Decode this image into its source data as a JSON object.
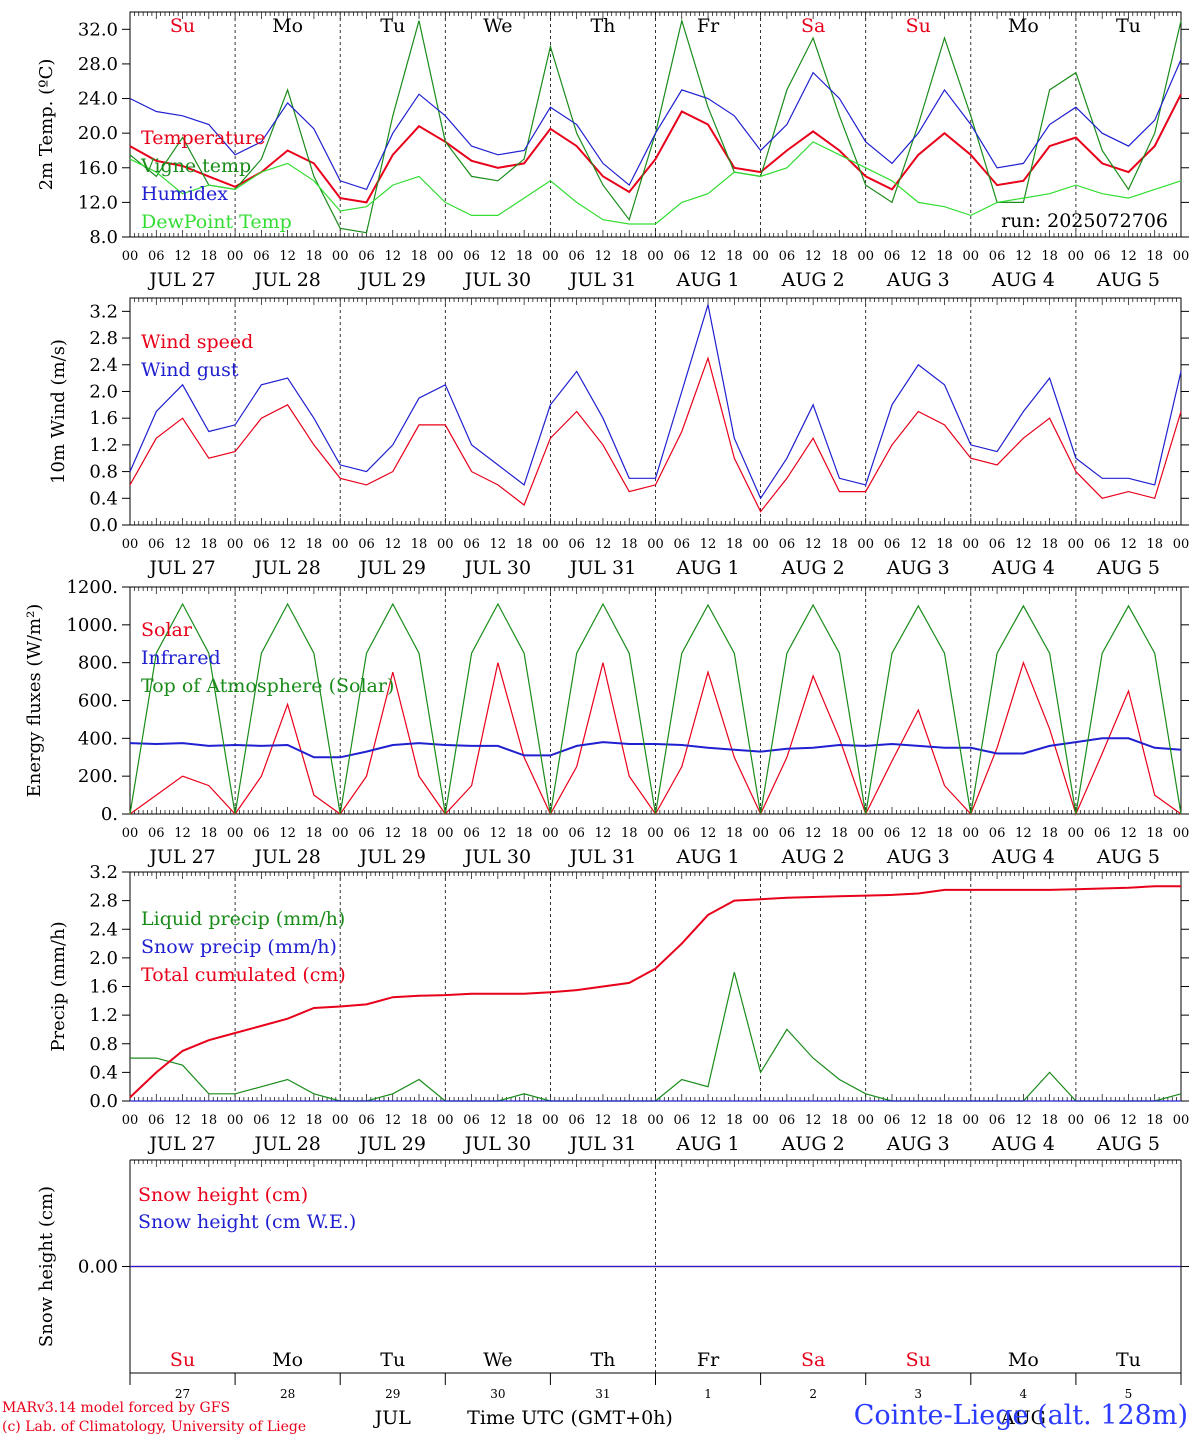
{
  "run_label": "run: 2025072706",
  "time_axis_label": "Time UTC (GMT+0h)",
  "month_label": "JUL",
  "month_label_2": "AUG",
  "footer": {
    "model_line": "MARv3.14 model forced by GFS",
    "credit_line": "(c) Lab. of Climatology, University of Liege",
    "station": "Cointe-Liege (alt. 128m)"
  },
  "days": [
    "JUL 27",
    "JUL 28",
    "JUL 29",
    "JUL 30",
    "JUL 31",
    "AUG  1",
    "AUG  2",
    "AUG  3",
    "AUG  4",
    "AUG  5"
  ],
  "weekdays": [
    "Su",
    "Mo",
    "Tu",
    "We",
    "Th",
    "Fr",
    "Sa",
    "Su",
    "Mo",
    "Tu"
  ],
  "bottom_day_numbers": [
    "27",
    "28",
    "29",
    "30",
    "31",
    "1",
    "2",
    "3",
    "4",
    "5"
  ],
  "hour_ticks": [
    "00",
    "06",
    "12",
    "18"
  ],
  "colors": {
    "red": "#e8001a",
    "green": "#1a8c1a",
    "blue": "#2020d0",
    "lightgreen": "#33dd33",
    "weekend": "#e8001a",
    "weekday": "#000000"
  },
  "chart_data": [
    {
      "type": "line",
      "ylabel": "2m Temp. (ºC)",
      "ylim": [
        8,
        34
      ],
      "yticks": [
        "8.0",
        "12.0",
        "16.0",
        "20.0",
        "24.0",
        "28.0",
        "32.0"
      ],
      "x": [
        0,
        6,
        12,
        18,
        24,
        30,
        36,
        42,
        48,
        54,
        60,
        66,
        72,
        78,
        84,
        90,
        96,
        102,
        108,
        114,
        120,
        126,
        132,
        138,
        144,
        150,
        156,
        162,
        168,
        174,
        180,
        186,
        192,
        198,
        204,
        210,
        216,
        222,
        228,
        234,
        240
      ],
      "series": [
        {
          "name": "Temperature",
          "color": "red",
          "values": [
            18.5,
            16.8,
            16.2,
            15.0,
            13.8,
            15.5,
            18.0,
            16.5,
            12.5,
            12.0,
            17.5,
            20.8,
            19.0,
            16.8,
            16.0,
            16.5,
            20.5,
            18.5,
            15.0,
            13.2,
            17.0,
            22.5,
            21.0,
            16.0,
            15.5,
            18.0,
            20.2,
            18.0,
            15.0,
            13.5,
            17.5,
            20.0,
            17.5,
            14.0,
            14.5,
            18.5,
            19.5,
            16.5,
            15.5,
            18.5,
            24.5
          ]
        },
        {
          "name": "Vigne temp",
          "color": "green",
          "values": [
            17.5,
            15.0,
            19.5,
            14.0,
            13.5,
            17.0,
            25.0,
            15.0,
            9.0,
            8.5,
            22.0,
            33.0,
            19.0,
            15.0,
            14.5,
            17.0,
            30.0,
            20.0,
            14.0,
            10.0,
            20.0,
            33.0,
            23.0,
            15.5,
            15.0,
            25.0,
            31.0,
            22.0,
            14.0,
            12.0,
            21.0,
            31.0,
            22.0,
            12.0,
            12.0,
            25.0,
            27.0,
            18.0,
            13.5,
            20.0,
            33.0
          ]
        },
        {
          "name": "Humidex",
          "color": "blue",
          "values": [
            24.0,
            22.5,
            22.0,
            21.0,
            17.5,
            19.0,
            23.5,
            20.5,
            14.5,
            13.5,
            20.0,
            24.5,
            22.0,
            18.5,
            17.5,
            18.0,
            23.0,
            21.0,
            16.5,
            14.0,
            20.0,
            25.0,
            24.0,
            22.0,
            18.0,
            21.0,
            27.0,
            24.0,
            19.0,
            16.5,
            20.0,
            25.0,
            21.0,
            16.0,
            16.5,
            21.0,
            23.0,
            20.0,
            18.5,
            21.5,
            28.5
          ]
        },
        {
          "name": "DewPoint Temp",
          "color": "lightgreen",
          "values": [
            17.0,
            15.5,
            13.0,
            14.0,
            13.5,
            15.5,
            16.5,
            14.5,
            11.0,
            11.5,
            14.0,
            15.0,
            12.0,
            10.5,
            10.5,
            12.5,
            14.5,
            12.0,
            10.0,
            9.5,
            9.5,
            12.0,
            13.0,
            15.5,
            15.0,
            16.0,
            19.0,
            17.5,
            16.0,
            14.5,
            12.0,
            11.5,
            10.5,
            12.0,
            12.5,
            13.0,
            14.0,
            13.0,
            12.5,
            13.5,
            14.5
          ]
        }
      ]
    },
    {
      "type": "line",
      "ylabel": "10m Wind (m/s)",
      "ylim": [
        0,
        3.4
      ],
      "yticks": [
        "0.0",
        "0.4",
        "0.8",
        "1.2",
        "1.6",
        "2.0",
        "2.4",
        "2.8",
        "3.2"
      ],
      "x": [
        0,
        6,
        12,
        18,
        24,
        30,
        36,
        42,
        48,
        54,
        60,
        66,
        72,
        78,
        84,
        90,
        96,
        102,
        108,
        114,
        120,
        126,
        132,
        138,
        144,
        150,
        156,
        162,
        168,
        174,
        180,
        186,
        192,
        198,
        204,
        210,
        216,
        222,
        228,
        234,
        240
      ],
      "series": [
        {
          "name": "Wind speed",
          "color": "red",
          "values": [
            0.6,
            1.3,
            1.6,
            1.0,
            1.1,
            1.6,
            1.8,
            1.2,
            0.7,
            0.6,
            0.8,
            1.5,
            1.5,
            0.8,
            0.6,
            0.3,
            1.3,
            1.7,
            1.2,
            0.5,
            0.6,
            1.4,
            2.5,
            1.0,
            0.2,
            0.7,
            1.3,
            0.5,
            0.5,
            1.2,
            1.7,
            1.5,
            1.0,
            0.9,
            1.3,
            1.6,
            0.8,
            0.4,
            0.5,
            0.4,
            1.7
          ]
        },
        {
          "name": "Wind gust",
          "color": "blue",
          "values": [
            0.8,
            1.7,
            2.1,
            1.4,
            1.5,
            2.1,
            2.2,
            1.6,
            0.9,
            0.8,
            1.2,
            1.9,
            2.1,
            1.2,
            0.9,
            0.6,
            1.8,
            2.3,
            1.6,
            0.7,
            0.7,
            2.0,
            3.3,
            1.3,
            0.4,
            1.0,
            1.8,
            0.7,
            0.6,
            1.8,
            2.4,
            2.1,
            1.2,
            1.1,
            1.7,
            2.2,
            1.0,
            0.7,
            0.7,
            0.6,
            2.3
          ]
        }
      ]
    },
    {
      "type": "line",
      "ylabel": "Energy fluxes (W/m²)",
      "ylim": [
        0,
        1200
      ],
      "yticks": [
        "0.",
        "200.",
        "400.",
        "600.",
        "800.",
        "1000.",
        "1200."
      ],
      "x": [
        0,
        6,
        12,
        18,
        24,
        30,
        36,
        42,
        48,
        54,
        60,
        66,
        72,
        78,
        84,
        90,
        96,
        102,
        108,
        114,
        120,
        126,
        132,
        138,
        144,
        150,
        156,
        162,
        168,
        174,
        180,
        186,
        192,
        198,
        204,
        210,
        216,
        222,
        228,
        234,
        240
      ],
      "series": [
        {
          "name": "Solar",
          "color": "red",
          "values": [
            0,
            100,
            200,
            150,
            0,
            200,
            580,
            100,
            0,
            200,
            750,
            200,
            0,
            150,
            800,
            300,
            0,
            250,
            800,
            200,
            0,
            250,
            750,
            300,
            0,
            300,
            730,
            400,
            0,
            280,
            550,
            150,
            0,
            350,
            800,
            450,
            0,
            320,
            650,
            100,
            0
          ]
        },
        {
          "name": "Infrared",
          "color": "blue",
          "values": [
            375,
            370,
            375,
            360,
            365,
            360,
            365,
            300,
            300,
            330,
            365,
            375,
            365,
            360,
            360,
            310,
            310,
            360,
            380,
            370,
            370,
            365,
            350,
            340,
            330,
            345,
            350,
            365,
            360,
            370,
            360,
            350,
            350,
            320,
            320,
            360,
            380,
            400,
            400,
            350,
            340
          ]
        },
        {
          "name": "Top of Atmosphere (Solar)",
          "color": "green",
          "values": [
            0,
            850,
            1110,
            850,
            0,
            850,
            1110,
            850,
            0,
            850,
            1110,
            850,
            0,
            850,
            1110,
            850,
            0,
            850,
            1110,
            850,
            0,
            850,
            1105,
            850,
            0,
            850,
            1105,
            850,
            0,
            850,
            1100,
            850,
            0,
            850,
            1100,
            850,
            0,
            850,
            1100,
            850,
            0
          ]
        }
      ]
    },
    {
      "type": "line",
      "ylabel": "Precip (mm/h)",
      "ylim": [
        0,
        3.2
      ],
      "yticks": [
        "0.0",
        "0.4",
        "0.8",
        "1.2",
        "1.6",
        "2.0",
        "2.4",
        "2.8",
        "3.2"
      ],
      "x": [
        0,
        6,
        12,
        18,
        24,
        30,
        36,
        42,
        48,
        54,
        60,
        66,
        72,
        78,
        84,
        90,
        96,
        102,
        108,
        114,
        120,
        126,
        132,
        138,
        144,
        150,
        156,
        162,
        168,
        174,
        180,
        186,
        192,
        198,
        204,
        210,
        216,
        222,
        228,
        234,
        240
      ],
      "series": [
        {
          "name": "Liquid precip (mm/h)",
          "color": "green",
          "values": [
            0.6,
            0.6,
            0.5,
            0.1,
            0.1,
            0.2,
            0.3,
            0.1,
            0.0,
            0.0,
            0.1,
            0.3,
            0.0,
            0.0,
            0.0,
            0.1,
            0.0,
            0.0,
            0.0,
            0.0,
            0.0,
            0.3,
            0.2,
            1.8,
            0.4,
            1.0,
            0.6,
            0.3,
            0.1,
            0.0,
            0.0,
            0.0,
            0.0,
            0.0,
            0.0,
            0.4,
            0.0,
            0.0,
            0.0,
            0.0,
            0.1
          ]
        },
        {
          "name": "Snow precip (mm/h)",
          "color": "blue",
          "values": [
            0,
            0,
            0,
            0,
            0,
            0,
            0,
            0,
            0,
            0,
            0,
            0,
            0,
            0,
            0,
            0,
            0,
            0,
            0,
            0,
            0,
            0,
            0,
            0,
            0,
            0,
            0,
            0,
            0,
            0,
            0,
            0,
            0,
            0,
            0,
            0,
            0,
            0,
            0,
            0,
            0
          ]
        },
        {
          "name": "Total cumulated (cm)",
          "color": "red",
          "values": [
            0.05,
            0.4,
            0.7,
            0.85,
            0.95,
            1.05,
            1.15,
            1.3,
            1.32,
            1.35,
            1.45,
            1.47,
            1.48,
            1.5,
            1.5,
            1.5,
            1.52,
            1.55,
            1.6,
            1.65,
            1.85,
            2.2,
            2.6,
            2.8,
            2.82,
            2.84,
            2.85,
            2.86,
            2.87,
            2.88,
            2.9,
            2.95,
            2.95,
            2.95,
            2.95,
            2.95,
            2.96,
            2.97,
            2.98,
            3.0,
            3.0
          ]
        }
      ]
    },
    {
      "type": "line",
      "ylabel": "Snow height (cm)",
      "ylim": [
        -1,
        1
      ],
      "yticks": [
        "0.00"
      ],
      "x": [
        0,
        240
      ],
      "series": [
        {
          "name": "Snow height (cm)",
          "color": "red",
          "values": [
            0,
            0
          ]
        },
        {
          "name": "Snow height (cm W.E.)",
          "color": "blue",
          "values": [
            0,
            0
          ]
        }
      ]
    }
  ]
}
